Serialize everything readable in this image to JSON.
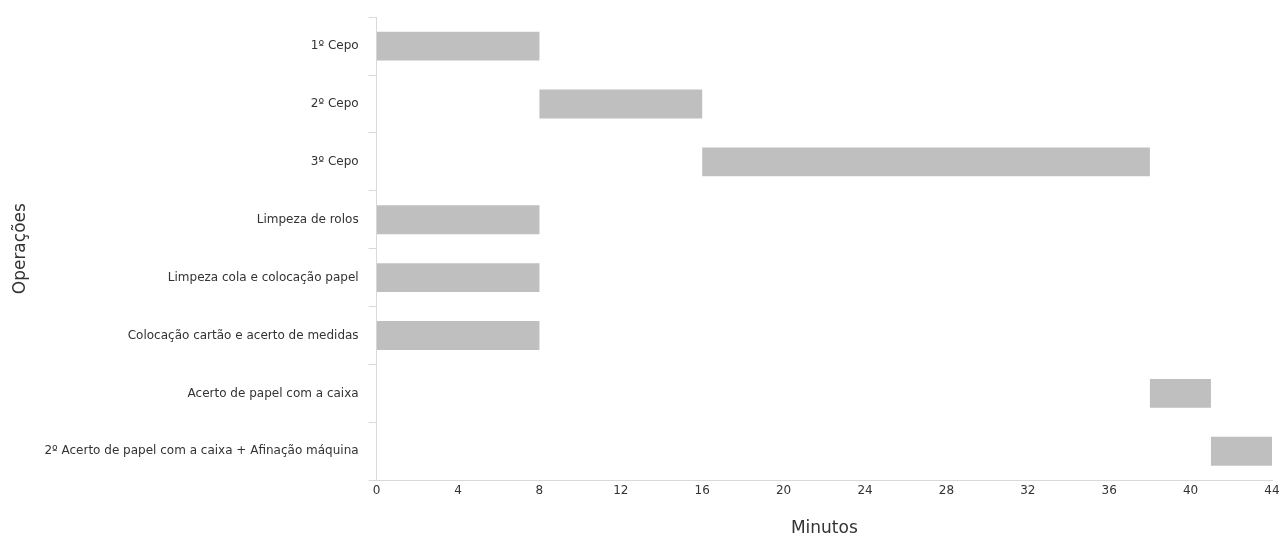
{
  "chart_data": {
    "type": "bar",
    "orientation": "horizontal",
    "xlabel": "Minutos",
    "ylabel": "Operações",
    "categories": [
      "1º Cepo",
      "2º Cepo",
      "3º Cepo",
      "Limpeza de rolos",
      "Limpeza cola e colocação papel",
      "Colocação cartão e acerto de medidas",
      "Acerto de papel com a caixa",
      "2º Acerto de papel com a caixa + Afinação máquina"
    ],
    "base": [
      0,
      8,
      16,
      0,
      0,
      0,
      38,
      41
    ],
    "values": [
      8,
      8,
      22,
      8,
      8,
      8,
      3,
      3
    ],
    "color": "#bfbfbf",
    "xlim": [
      0,
      44
    ],
    "xticks": [
      0,
      4,
      8,
      12,
      16,
      20,
      24,
      28,
      32,
      36,
      40,
      44
    ],
    "grid": false,
    "legend": false
  }
}
